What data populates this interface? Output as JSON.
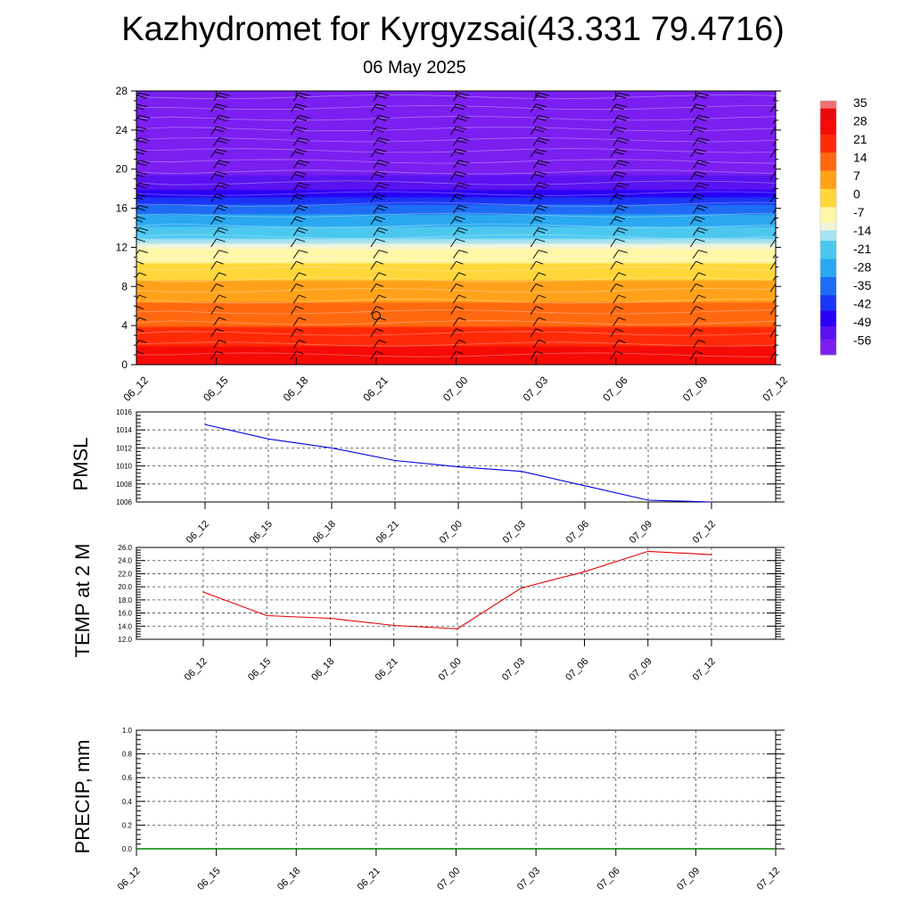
{
  "title": "Kazhydromet for Kyrgyzsai(43.331 79.4716)",
  "subtitle": "06 May 2025",
  "chart_data": [
    {
      "type": "heatmap",
      "panel": "height-time cross-section (temperature shading with wind barbs)",
      "x_categories": [
        "06_12",
        "06_15",
        "06_18",
        "06_21",
        "07_00",
        "07_03",
        "07_06",
        "07_09",
        "07_12"
      ],
      "y_ticks": [
        0,
        4,
        8,
        12,
        16,
        20,
        24,
        28
      ],
      "ylim": [
        0,
        28
      ],
      "color_scale": {
        "ticks": [
          35,
          28,
          21,
          14,
          7,
          0,
          -7,
          -14,
          -21,
          -28,
          -35,
          -42,
          -49,
          -56
        ],
        "min": -63,
        "max": 35,
        "stops": [
          {
            "v": -63,
            "c": "#7a1ff0"
          },
          {
            "v": -57,
            "c": "#5a12f0"
          },
          {
            "v": -52,
            "c": "#2a00f5"
          },
          {
            "v": -46,
            "c": "#1a35f5"
          },
          {
            "v": -40,
            "c": "#1f6cf5"
          },
          {
            "v": -33,
            "c": "#2aa8f0"
          },
          {
            "v": -26,
            "c": "#4cc8ef"
          },
          {
            "v": -19,
            "c": "#a6e2f2"
          },
          {
            "v": -15,
            "c": "#f0f4d8"
          },
          {
            "v": -12,
            "c": "#fff6a8"
          },
          {
            "v": -6,
            "c": "#ffd73a"
          },
          {
            "v": 1,
            "c": "#ffa21a"
          },
          {
            "v": 8,
            "c": "#ff6a10"
          },
          {
            "v": 15,
            "c": "#ff2a08"
          },
          {
            "v": 22,
            "c": "#f50a06"
          },
          {
            "v": 28,
            "c": "#e80a0a"
          },
          {
            "v": 32,
            "c": "#f07070"
          },
          {
            "v": 35,
            "c": "#f5c0c0"
          }
        ]
      },
      "temperature_profile": [
        {
          "h": 0,
          "t": 25
        },
        {
          "h": 2,
          "t": 22
        },
        {
          "h": 4,
          "t": 15
        },
        {
          "h": 6,
          "t": 9
        },
        {
          "h": 8,
          "t": 3
        },
        {
          "h": 10,
          "t": -4
        },
        {
          "h": 11.5,
          "t": -10
        },
        {
          "h": 12.3,
          "t": -14
        },
        {
          "h": 13,
          "t": -19
        },
        {
          "h": 14,
          "t": -25
        },
        {
          "h": 15,
          "t": -31
        },
        {
          "h": 16,
          "t": -38
        },
        {
          "h": 17,
          "t": -45
        },
        {
          "h": 18,
          "t": -52
        },
        {
          "h": 19,
          "t": -56
        },
        {
          "h": 20.5,
          "t": -59
        },
        {
          "h": 22,
          "t": -61
        },
        {
          "h": 24,
          "t": -62
        },
        {
          "h": 28,
          "t": -63
        }
      ]
    },
    {
      "type": "line",
      "ylabel": "PMSL",
      "x_categories": [
        "06_12",
        "06_15",
        "06_18",
        "06_21",
        "07_00",
        "07_03",
        "07_06",
        "07_09",
        "07_12"
      ],
      "values": [
        1014.6,
        1013.0,
        1012.0,
        1010.6,
        1009.9,
        1009.4,
        1007.8,
        1006.2,
        1006.0
      ],
      "ylim": [
        1006,
        1016
      ],
      "y_ticks": [
        1006,
        1008,
        1010,
        1012,
        1014,
        1016
      ],
      "tick_labels": [
        "1006",
        "1008",
        "1010",
        "1012",
        "1014",
        "1016"
      ],
      "color": "#0000e6",
      "grid": true
    },
    {
      "type": "line",
      "ylabel": "TEMP at 2 M",
      "x_categories": [
        "06_12",
        "06_15",
        "06_18",
        "06_21",
        "07_00",
        "07_03",
        "07_06",
        "07_09",
        "07_12"
      ],
      "values": [
        19.2,
        15.6,
        15.2,
        14.1,
        13.6,
        19.8,
        22.3,
        25.4,
        24.9
      ],
      "ylim": [
        12,
        26
      ],
      "y_ticks": [
        12,
        14,
        16,
        18,
        20,
        22,
        24,
        26
      ],
      "tick_labels": [
        "12.0",
        "14.0",
        "16.0",
        "18.0",
        "20.0",
        "22.0",
        "24.0",
        "26.0"
      ],
      "color": "#e60000",
      "grid": true
    },
    {
      "type": "line",
      "ylabel": "PRECIP, mm",
      "x_categories": [
        "06_12",
        "06_15",
        "06_18",
        "06_21",
        "07_00",
        "07_03",
        "07_06",
        "07_09",
        "07_12"
      ],
      "values": [
        0,
        0,
        0,
        0,
        0,
        0,
        0,
        0,
        0
      ],
      "ylim": [
        0,
        1
      ],
      "y_ticks": [
        0,
        0.2,
        0.4,
        0.6,
        0.8,
        1.0
      ],
      "tick_labels": [
        "0.0",
        "0.2",
        "0.4",
        "0.6",
        "0.8",
        "1.0"
      ],
      "color": "#008000",
      "grid": true
    }
  ]
}
